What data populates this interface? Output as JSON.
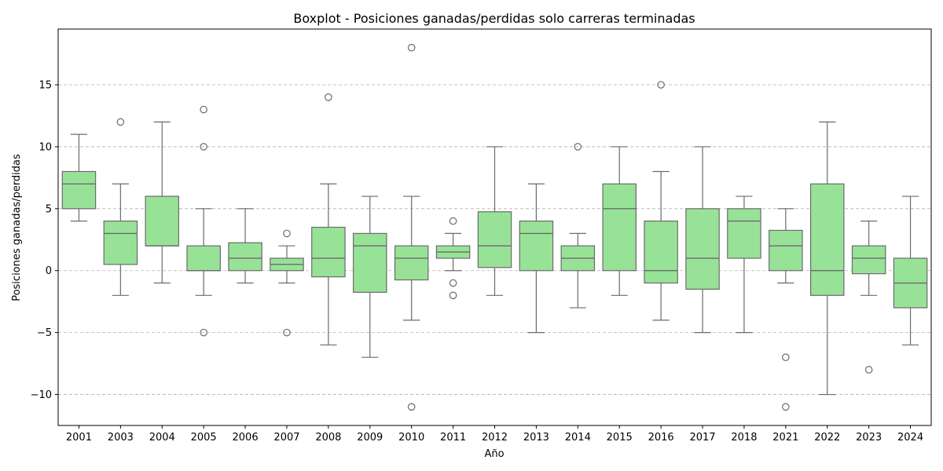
{
  "chart_data": {
    "type": "boxplot",
    "title": "Boxplot - Posiciones ganadas/perdidas solo carreras terminadas",
    "xlabel": "Año",
    "ylabel": "Posiciones ganadas/perdidas",
    "ylim": [
      -12.5,
      19.5
    ],
    "yticks": [
      -10,
      -5,
      0,
      5,
      10,
      15
    ],
    "grid": "y-dashed",
    "box_color": "#98e298",
    "line_color": "#6b6b6b",
    "categories": [
      "2001",
      "2003",
      "2004",
      "2005",
      "2006",
      "2007",
      "2008",
      "2009",
      "2010",
      "2011",
      "2012",
      "2013",
      "2014",
      "2015",
      "2016",
      "2017",
      "2018",
      "2021",
      "2022",
      "2023",
      "2024"
    ],
    "boxes": [
      {
        "q1": 5,
        "median": 7,
        "q3": 8,
        "whislo": 4,
        "whishi": 11,
        "fliers": []
      },
      {
        "q1": 0.5,
        "median": 3,
        "q3": 4,
        "whislo": -2,
        "whishi": 7,
        "fliers": [
          12
        ]
      },
      {
        "q1": 2,
        "median": 2,
        "q3": 6,
        "whislo": -1,
        "whishi": 12,
        "fliers": []
      },
      {
        "q1": 0,
        "median": 0,
        "q3": 2,
        "whislo": -2,
        "whishi": 5,
        "fliers": [
          13,
          10,
          -5
        ]
      },
      {
        "q1": 0,
        "median": 1,
        "q3": 2.25,
        "whislo": -1,
        "whishi": 5,
        "fliers": []
      },
      {
        "q1": 0,
        "median": 0.5,
        "q3": 1,
        "whislo": -1,
        "whishi": 2,
        "fliers": [
          3,
          -5
        ]
      },
      {
        "q1": -0.5,
        "median": 1,
        "q3": 3.5,
        "whislo": -6,
        "whishi": 7,
        "fliers": [
          14
        ]
      },
      {
        "q1": -1.75,
        "median": 2,
        "q3": 3,
        "whislo": -7,
        "whishi": 6,
        "fliers": []
      },
      {
        "q1": -0.75,
        "median": 1,
        "q3": 2,
        "whislo": -4,
        "whishi": 6,
        "fliers": [
          18,
          -11
        ]
      },
      {
        "q1": 1,
        "median": 1.5,
        "q3": 2,
        "whislo": 0,
        "whishi": 3,
        "fliers": [
          4,
          -1,
          -2
        ]
      },
      {
        "q1": 0.25,
        "median": 2,
        "q3": 4.75,
        "whislo": -2,
        "whishi": 10,
        "fliers": []
      },
      {
        "q1": 0,
        "median": 3,
        "q3": 4,
        "whislo": -5,
        "whishi": 7,
        "fliers": []
      },
      {
        "q1": 0,
        "median": 1,
        "q3": 2,
        "whislo": -3,
        "whishi": 3,
        "fliers": [
          10
        ]
      },
      {
        "q1": 0,
        "median": 5,
        "q3": 7,
        "whislo": -2,
        "whishi": 10,
        "fliers": []
      },
      {
        "q1": -1,
        "median": 0,
        "q3": 4,
        "whislo": -4,
        "whishi": 8,
        "fliers": [
          15
        ]
      },
      {
        "q1": -1.5,
        "median": 1,
        "q3": 5,
        "whislo": -5,
        "whishi": 10,
        "fliers": []
      },
      {
        "q1": 1,
        "median": 4,
        "q3": 5,
        "whislo": -5,
        "whishi": 6,
        "fliers": []
      },
      {
        "q1": 0,
        "median": 2,
        "q3": 3.25,
        "whislo": -1,
        "whishi": 5,
        "fliers": [
          -7,
          -11
        ]
      },
      {
        "q1": -2,
        "median": 0,
        "q3": 7,
        "whislo": -10,
        "whishi": 12,
        "fliers": []
      },
      {
        "q1": -0.25,
        "median": 1,
        "q3": 2,
        "whislo": -2,
        "whishi": 4,
        "fliers": [
          -8
        ]
      },
      {
        "q1": -3,
        "median": -1,
        "q3": 1,
        "whislo": -6,
        "whishi": 6,
        "fliers": []
      }
    ]
  }
}
